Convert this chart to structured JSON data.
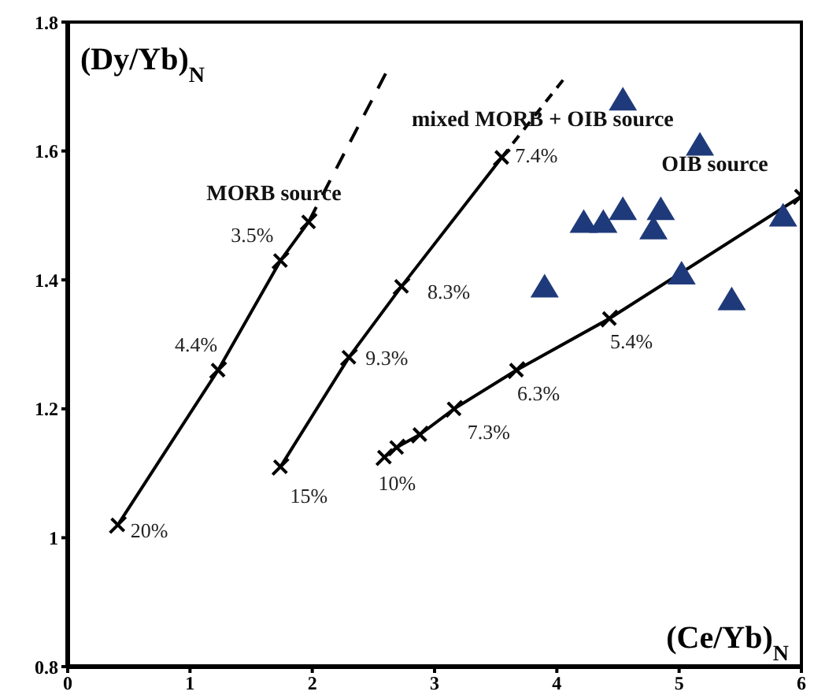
{
  "chart_data": {
    "type": "line",
    "xlabel": "(Ce/Yb)$_{N}$",
    "ylabel": "(Dy/Yb)$_{N}$",
    "xlim": [
      0,
      6
    ],
    "xticks": [
      0,
      1,
      2,
      3,
      4,
      5,
      6
    ],
    "ylim": [
      0.8,
      1.8
    ],
    "yticks": [
      0.8,
      1,
      1.2,
      1.4,
      1.6,
      1.8
    ],
    "grid": false,
    "legend": false,
    "series": [
      {
        "name": "MORB source",
        "color": "#000000",
        "marker": "cross",
        "line_style": "solid",
        "x": [
          0.41,
          1.23,
          1.74,
          1.97
        ],
        "values": [
          1.02,
          1.26,
          1.43,
          1.49
        ]
      },
      {
        "color": "#000000",
        "marker": "none",
        "line_style": "dashed",
        "x": [
          1.97,
          2.6
        ],
        "values": [
          1.49,
          1.72
        ]
      },
      {
        "name": "mixed MORB + OIB source",
        "color": "#000000",
        "marker": "cross",
        "line_style": "solid",
        "x": [
          1.74,
          2.3,
          2.73,
          3.55
        ],
        "values": [
          1.11,
          1.28,
          1.39,
          1.59
        ]
      },
      {
        "color": "#000000",
        "marker": "none",
        "line_style": "dashed",
        "x": [
          3.55,
          4.05
        ],
        "values": [
          1.59,
          1.71
        ]
      },
      {
        "name": "OIB source",
        "color": "#000000",
        "marker": "cross",
        "line_style": "solid",
        "x": [
          2.59,
          2.69,
          2.88,
          3.16,
          3.67,
          4.43,
          6.0
        ],
        "values": [
          1.125,
          1.14,
          1.16,
          1.2,
          1.26,
          1.34,
          1.53
        ]
      },
      {
        "type": "scatter",
        "color": "#1f3a7a",
        "marker": "triangle",
        "x": [
          4.54,
          5.17,
          4.22,
          4.38,
          4.54,
          4.85,
          4.79,
          5.85,
          3.9,
          5.02,
          5.43
        ],
        "values": [
          1.68,
          1.61,
          1.49,
          1.49,
          1.51,
          1.51,
          1.48,
          1.5,
          1.39,
          1.41,
          1.37
        ]
      }
    ],
    "annotations": [
      {
        "text": "20%",
        "x": 0.41,
        "y": 1.02
      },
      {
        "text": "4.4%",
        "x": 1.23,
        "y": 1.26
      },
      {
        "text": "3.5%",
        "x": 1.74,
        "y": 1.43
      },
      {
        "text": "15%",
        "x": 1.74,
        "y": 1.11
      },
      {
        "text": "9.3%",
        "x": 2.3,
        "y": 1.28
      },
      {
        "text": "8.3%",
        "x": 2.73,
        "y": 1.39
      },
      {
        "text": "7.4%",
        "x": 3.55,
        "y": 1.59
      },
      {
        "text": "10%",
        "x": 2.59,
        "y": 1.125
      },
      {
        "text": "7.3%",
        "x": 3.16,
        "y": 1.2
      },
      {
        "text": "6.3%",
        "x": 3.67,
        "y": 1.26
      },
      {
        "text": "5.4%",
        "x": 4.43,
        "y": 1.34
      }
    ]
  }
}
